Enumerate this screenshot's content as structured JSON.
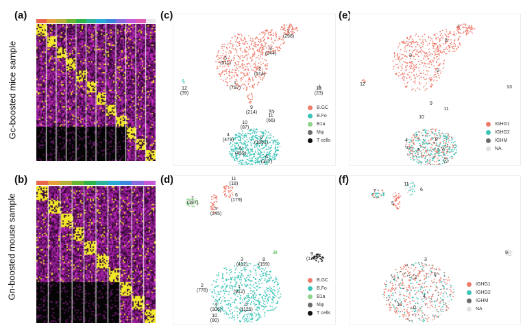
{
  "panels": {
    "a": "(a)",
    "b": "(b)",
    "c": "(c)",
    "d": "(d)",
    "e": "(e)",
    "f": "(f)"
  },
  "side_labels": {
    "top": "Gc-boosted mice sample",
    "bottom": "Gn-boosted mouse sample"
  },
  "heatmap_colors": {
    "a": [
      "#e8644a",
      "#e6a03a",
      "#b9b03a",
      "#69b534",
      "#2db24c",
      "#2db39a",
      "#28a9d8",
      "#3c86e0",
      "#8a6be0",
      "#c55ad8",
      "#e05ab8",
      "#e8e8e8"
    ],
    "b": [
      "#e8644a",
      "#e6a03a",
      "#b9b03a",
      "#69b534",
      "#2db24c",
      "#2db39a",
      "#28a9d8",
      "#3c86e0",
      "#8a6be0",
      "#c55ad8"
    ]
  },
  "legend_celltype": {
    "items": [
      {
        "label": "B.GC",
        "color": "#f07a6a"
      },
      {
        "label": "B.Fo",
        "color": "#3cc4b8"
      },
      {
        "label": "B1a",
        "color": "#8fd48a"
      },
      {
        "label": "Mφ",
        "color": "#6b6b6b"
      },
      {
        "label": "T cells",
        "color": "#111111"
      }
    ]
  },
  "legend_isotype": {
    "items": [
      {
        "label": "IGHG1",
        "color": "#f07a6a"
      },
      {
        "label": "IGHG2",
        "color": "#3cc4b8"
      },
      {
        "label": "IGHM",
        "color": "#6b6b6b"
      },
      {
        "label": "NA",
        "color": "#e0e0e0"
      }
    ]
  },
  "clusters_c": [
    {
      "num": "7",
      "count": "(296)"
    },
    {
      "num": "8",
      "count": "(244)"
    },
    {
      "num": "3",
      "count": "(511)"
    },
    {
      "num": "2",
      "count": "(514)"
    },
    {
      "num": "1",
      "count": "(797)"
    },
    {
      "num": "12",
      "count": "(39)"
    },
    {
      "num": "13",
      "count": "(23)"
    },
    {
      "num": "9",
      "count": "(214)"
    },
    {
      "num": "11",
      "count": "(66)"
    },
    {
      "num": "10",
      "count": "(87)"
    },
    {
      "num": "4",
      "count": "(479)"
    },
    {
      "num": "0",
      "count": "(1951)"
    },
    {
      "num": "5",
      "count": "(459)"
    },
    {
      "num": "6",
      "count": "(377)"
    }
  ],
  "clusters_d": [
    {
      "num": "11",
      "count": "(18)"
    },
    {
      "num": "6",
      "count": "(179)"
    },
    {
      "num": "7",
      "count": "(187)"
    },
    {
      "num": "5",
      "count": "(245)"
    },
    {
      "num": "9",
      "count": "(126)"
    },
    {
      "num": "3",
      "count": "(412)"
    },
    {
      "num": "8",
      "count": "(159)"
    },
    {
      "num": "2",
      "count": "(778)"
    },
    {
      "num": "1",
      "count": "(912)"
    },
    {
      "num": "4",
      "count": "(306)"
    },
    {
      "num": "0",
      "count": "(1125)"
    },
    {
      "num": "10",
      "count": "(80)"
    }
  ],
  "clusters_e": [
    "7",
    "8",
    "3",
    "2",
    "12",
    "13",
    "9",
    "11",
    "10",
    "4",
    "0",
    "5",
    "6"
  ],
  "clusters_f": [
    "7",
    "11",
    "6",
    "5",
    "9",
    "3",
    "2",
    "1",
    "8",
    "4",
    "10",
    "0"
  ]
}
